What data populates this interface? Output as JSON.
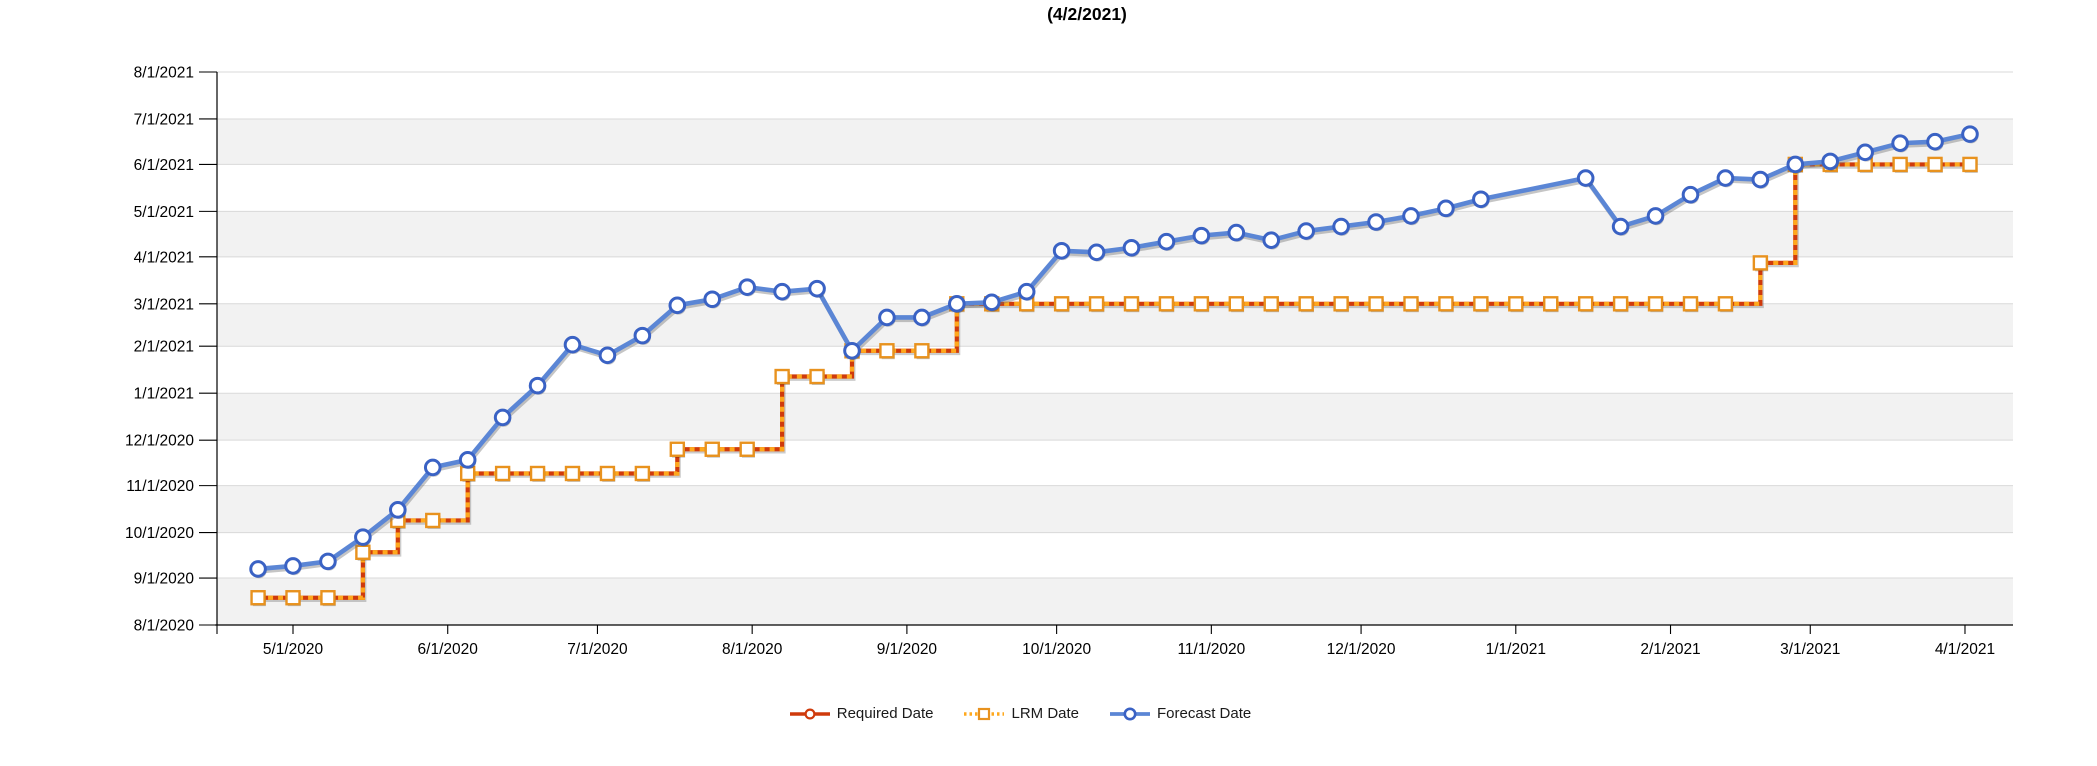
{
  "title": "(4/2/2021)",
  "y_axis": {
    "labels": [
      "8/1/2021",
      "7/1/2021",
      "6/1/2021",
      "5/1/2021",
      "4/1/2021",
      "3/1/2021",
      "2/1/2021",
      "1/1/2021",
      "12/1/2020",
      "11/1/2020",
      "10/1/2020",
      "9/1/2020",
      "8/1/2020"
    ]
  },
  "x_axis": {
    "labels": [
      "5/1/2020",
      "6/1/2020",
      "7/1/2020",
      "8/1/2020",
      "9/1/2020",
      "10/1/2020",
      "11/1/2020",
      "12/1/2020",
      "1/1/2021",
      "2/1/2021",
      "3/1/2021",
      "4/1/2021"
    ]
  },
  "legend": [
    {
      "label": "Required Date",
      "swatch": "required"
    },
    {
      "label": "LRM Date",
      "swatch": "lrm"
    },
    {
      "label": "Forecast Date",
      "swatch": "forecast"
    }
  ],
  "colors": {
    "required_line": "#cf3a0b",
    "lrm_dash": "#ffa81d",
    "lrm_marker_border": "#e8921e",
    "forecast_line": "#5b86d5",
    "forecast_marker_border": "#3a62c4",
    "band_fill": "#f2f2f2",
    "gridline": "#d9d9d9",
    "axis": "#000000"
  },
  "chart_data": {
    "type": "line",
    "title": "(4/2/2021)",
    "x_range": [
      "4/15/2020",
      "4/10/2021"
    ],
    "y_range": [
      "8/1/2020",
      "8/1/2021"
    ],
    "grid": "horizontal-monthly, alternating shaded bands",
    "legend_position": "bottom-center",
    "x": [
      "4/24/2020",
      "5/1/2020",
      "5/8/2020",
      "5/15/2020",
      "5/22/2020",
      "5/29/2020",
      "6/5/2020",
      "6/12/2020",
      "6/19/2020",
      "6/26/2020",
      "7/3/2020",
      "7/10/2020",
      "7/17/2020",
      "7/24/2020",
      "7/31/2020",
      "8/7/2020",
      "8/14/2020",
      "8/21/2020",
      "8/28/2020",
      "9/4/2020",
      "9/11/2020",
      "9/18/2020",
      "9/25/2020",
      "10/2/2020",
      "10/9/2020",
      "10/16/2020",
      "10/23/2020",
      "10/30/2020",
      "11/6/2020",
      "11/13/2020",
      "11/20/2020",
      "11/27/2020",
      "12/4/2020",
      "12/11/2020",
      "12/18/2020",
      "12/25/2020",
      "1/1/2021",
      "1/8/2021",
      "1/15/2021",
      "1/22/2021",
      "1/29/2021",
      "2/5/2021",
      "2/12/2021",
      "2/19/2021",
      "2/26/2021",
      "3/5/2021",
      "3/12/2021",
      "3/19/2021",
      "3/26/2021",
      "4/2/2021"
    ],
    "series": [
      {
        "name": "Required Date",
        "style": "step-solid",
        "color": "#cf3a0b",
        "marker": "circle-hidden-under-lrm",
        "values": [
          "8/19/2020",
          "8/19/2020",
          "8/19/2020",
          "9/18/2020",
          "10/9/2020",
          "10/9/2020",
          "11/9/2020",
          "11/9/2020",
          "11/9/2020",
          "11/9/2020",
          "11/9/2020",
          "11/9/2020",
          "11/25/2020",
          "11/25/2020",
          "11/25/2020",
          "1/12/2021",
          "1/12/2021",
          "1/29/2021",
          "1/29/2021",
          "1/29/2021",
          "3/1/2021",
          "3/1/2021",
          "3/1/2021",
          "3/1/2021",
          "3/1/2021",
          "3/1/2021",
          "3/1/2021",
          "3/1/2021",
          "3/1/2021",
          "3/1/2021",
          "3/1/2021",
          "3/1/2021",
          "3/1/2021",
          "3/1/2021",
          "3/1/2021",
          "3/1/2021",
          "3/1/2021",
          "3/1/2021",
          "3/1/2021",
          "3/1/2021",
          "3/1/2021",
          "3/1/2021",
          "3/1/2021",
          "3/28/2021",
          "6/1/2021",
          "6/1/2021",
          "6/1/2021",
          "6/1/2021",
          "6/1/2021",
          "6/1/2021"
        ]
      },
      {
        "name": "LRM Date",
        "style": "step-dotted-overlay",
        "color": "#ffa81d",
        "marker": "square",
        "values": [
          "8/19/2020",
          "8/19/2020",
          "8/19/2020",
          "9/18/2020",
          "10/9/2020",
          "10/9/2020",
          "11/9/2020",
          "11/9/2020",
          "11/9/2020",
          "11/9/2020",
          "11/9/2020",
          "11/9/2020",
          "11/25/2020",
          "11/25/2020",
          "11/25/2020",
          "1/12/2021",
          "1/12/2021",
          "1/29/2021",
          "1/29/2021",
          "1/29/2021",
          "3/1/2021",
          "3/1/2021",
          "3/1/2021",
          "3/1/2021",
          "3/1/2021",
          "3/1/2021",
          "3/1/2021",
          "3/1/2021",
          "3/1/2021",
          "3/1/2021",
          "3/1/2021",
          "3/1/2021",
          "3/1/2021",
          "3/1/2021",
          "3/1/2021",
          "3/1/2021",
          "3/1/2021",
          "3/1/2021",
          "3/1/2021",
          "3/1/2021",
          "3/1/2021",
          "3/1/2021",
          "3/1/2021",
          "3/28/2021",
          "6/1/2021",
          "6/1/2021",
          "6/1/2021",
          "6/1/2021",
          "6/1/2021",
          "6/1/2021"
        ]
      },
      {
        "name": "Forecast Date",
        "style": "line",
        "color": "#5b86d5",
        "marker": "circle",
        "values": [
          "9/7/2020",
          "9/9/2020",
          "9/12/2020",
          "9/28/2020",
          "10/16/2020",
          "11/13/2020",
          "11/18/2020",
          "12/16/2020",
          "1/6/2021",
          "2/2/2021",
          "1/26/2021",
          "2/8/2021",
          "2/28/2021",
          "3/4/2021",
          "3/12/2021",
          "3/9/2021",
          "3/11/2021",
          "1/29/2021",
          "2/20/2021",
          "2/20/2021",
          "3/1/2021",
          "3/2/2021",
          "3/9/2021",
          "4/5/2021",
          "4/4/2021",
          "4/7/2021",
          "4/11/2021",
          "4/15/2021",
          "4/17/2021",
          "4/12/2021",
          "4/18/2021",
          "4/21/2021",
          "4/24/2021",
          "4/28/2021",
          "5/3/2021",
          "5/9/2021",
          null,
          null,
          "5/23/2021",
          "4/21/2021",
          "4/28/2021",
          "5/12/2021",
          "5/23/2021",
          "5/22/2021",
          "6/1/2021",
          "6/3/2021",
          "6/9/2021",
          "6/15/2021",
          "6/16/2021",
          "6/21/2021"
        ]
      }
    ]
  }
}
